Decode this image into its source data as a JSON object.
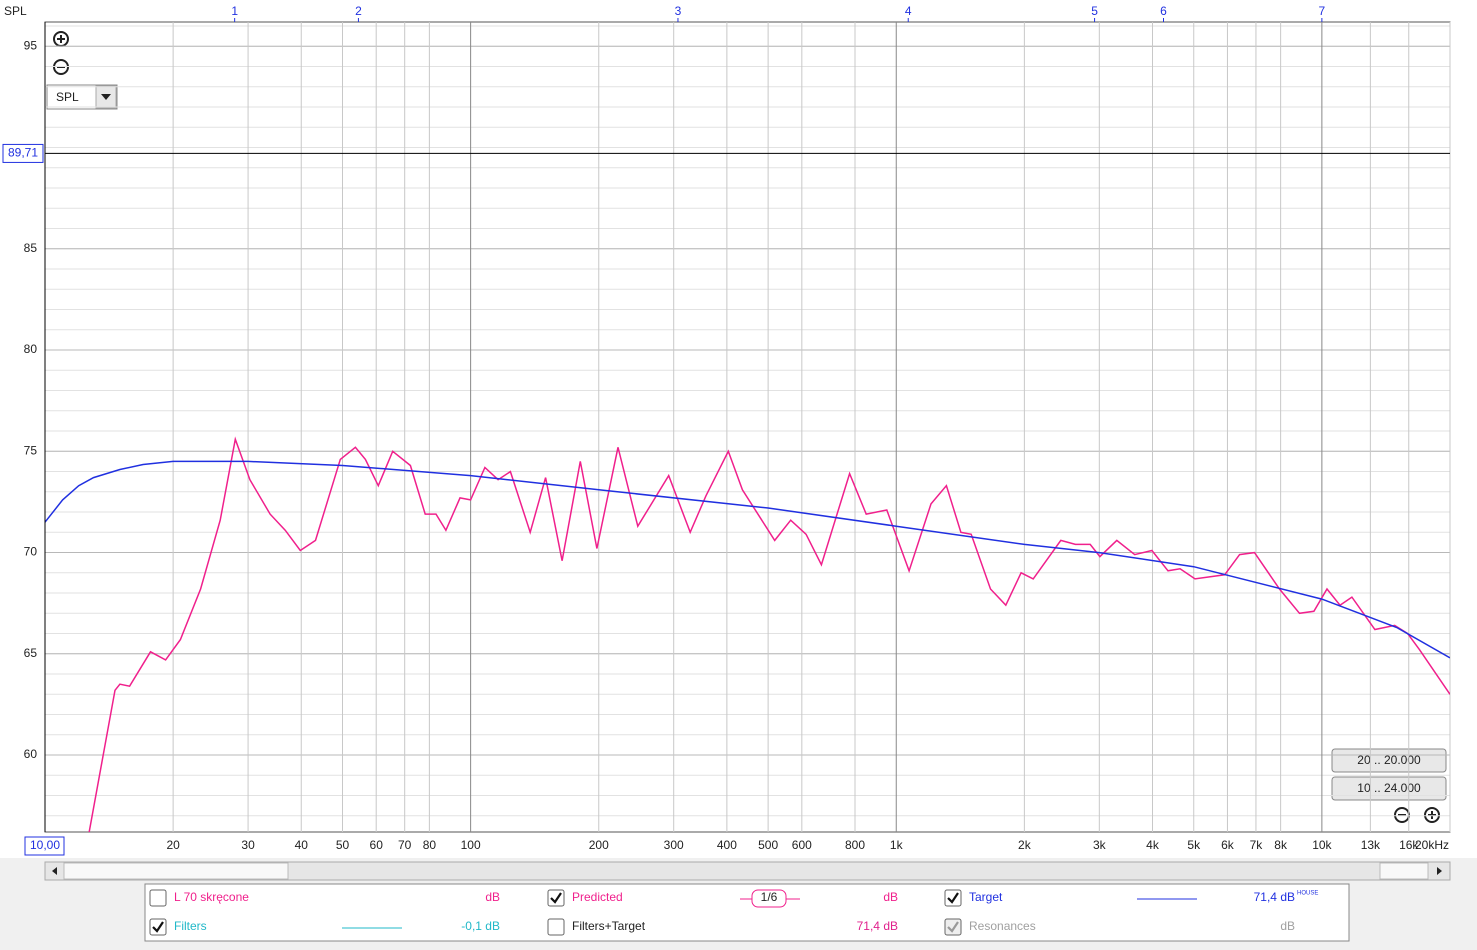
{
  "chart_data": {
    "type": "line",
    "y_label": "SPL",
    "log_x": true,
    "grid": true,
    "xlim": [
      10,
      20000
    ],
    "ylim": [
      56.2,
      96.2
    ],
    "yticks": [
      60,
      65,
      70,
      75,
      80,
      85,
      95
    ],
    "xticks": [
      20,
      30,
      40,
      50,
      60,
      70,
      80,
      100,
      200,
      300,
      400,
      500,
      600,
      800,
      {
        "value": 1000,
        "label": "1k"
      },
      {
        "value": 2000,
        "label": "2k"
      },
      {
        "value": 3000,
        "label": "3k"
      },
      {
        "value": 4000,
        "label": "4k"
      },
      {
        "value": 5000,
        "label": "5k"
      },
      {
        "value": 6000,
        "label": "6k"
      },
      {
        "value": 7000,
        "label": "7k"
      },
      {
        "value": 8000,
        "label": "8k"
      },
      {
        "value": 10000,
        "label": "10k"
      },
      {
        "value": 13000,
        "label": "13k"
      },
      {
        "value": 16000,
        "label": "16k"
      },
      {
        "value": 20000,
        "label": "20kHz"
      }
    ],
    "x_cursor": {
      "value": 10,
      "label": "10,00"
    },
    "y_cursor": {
      "value": 89.71,
      "label": "89,71"
    },
    "top_markers": [
      {
        "value": 27.9,
        "label": "1"
      },
      {
        "value": 54.5,
        "label": "2"
      },
      {
        "value": 307,
        "label": "3"
      },
      {
        "value": 1067,
        "label": "4"
      },
      {
        "value": 2924,
        "label": "5"
      },
      {
        "value": 4245,
        "label": "6"
      },
      {
        "value": 10000,
        "label": "7"
      }
    ],
    "series": [
      {
        "name": "Predicted",
        "color": "#f0208c",
        "checked": true,
        "readout": "dB",
        "smoothing": "1/6",
        "x": [
          12.6,
          14.6,
          15,
          15.8,
          17.7,
          19.2,
          20.8,
          23.2,
          25.8,
          28,
          30.3,
          33.8,
          36.7,
          39.8,
          43.2,
          49.4,
          53.6,
          56.6,
          60.7,
          65.6,
          72.2,
          78.2,
          82.9,
          87.5,
          94.4,
          100,
          108,
          116,
          124,
          138,
          150,
          164,
          181,
          198,
          222,
          247,
          292,
          328,
          357,
          403,
          435,
          518,
          565,
          614,
          667,
          777,
          850,
          950,
          1072,
          1207,
          1312,
          1419,
          1500,
          1665,
          1809,
          1965,
          2098,
          2436,
          2636,
          2855,
          3010,
          3297,
          3633,
          3988,
          4349,
          4643,
          5034,
          5910,
          6407,
          6945,
          7953,
          8862,
          9580,
          10280,
          11033,
          11762,
          13320,
          14830,
          15913,
          16970,
          20000
        ],
        "values": [
          55.8,
          63.2,
          63.5,
          63.4,
          65.1,
          64.7,
          65.7,
          68.2,
          71.6,
          75.6,
          73.6,
          71.9,
          71.1,
          70.1,
          70.6,
          74.6,
          75.2,
          74.6,
          73.3,
          75,
          74.3,
          71.9,
          71.9,
          71.1,
          72.7,
          72.6,
          74.2,
          73.6,
          74,
          71,
          73.7,
          69.6,
          74.5,
          70.2,
          75.2,
          71.3,
          73.8,
          71,
          72.8,
          75,
          73.1,
          70.6,
          71.6,
          70.9,
          69.4,
          73.9,
          71.9,
          72.1,
          69.1,
          72.4,
          73.3,
          71,
          70.9,
          68.2,
          67.4,
          69,
          68.7,
          70.6,
          70.4,
          70.4,
          69.8,
          70.6,
          69.9,
          70.1,
          69.1,
          69.2,
          68.7,
          68.9,
          69.9,
          70,
          68.2,
          67,
          67.1,
          68.2,
          67.4,
          67.8,
          66.2,
          66.4,
          66,
          65.2,
          63
        ]
      },
      {
        "name": "Target",
        "color": "#2030e0",
        "checked": true,
        "readout": "71,4 dB",
        "readout_note": "HOUSE",
        "x": [
          10,
          11,
          12,
          13,
          15,
          17,
          20,
          30,
          50,
          100,
          200,
          500,
          1000,
          2000,
          3000,
          5000,
          10000,
          15000,
          20000
        ],
        "values": [
          71.5,
          72.6,
          73.3,
          73.7,
          74.1,
          74.35,
          74.5,
          74.5,
          74.3,
          73.8,
          73.1,
          72.2,
          71.3,
          70.4,
          70,
          69.3,
          67.7,
          66.3,
          64.8
        ]
      }
    ],
    "other_traces": [
      {
        "name": "L 70 skręcone",
        "checked": false,
        "readout": "dB",
        "color": "#f0208c"
      },
      {
        "name": "Filters",
        "checked": true,
        "readout": "-0,1 dB",
        "color": "#20b8c8"
      },
      {
        "name": "Filters+Target",
        "checked": false,
        "readout": "71,4 dB",
        "color": "#e0208c"
      },
      {
        "name": "Resonances",
        "checked": true,
        "disabled": true,
        "readout": "dB",
        "color": "#a0a0a0"
      }
    ]
  },
  "controls": {
    "dropdown": "SPL",
    "range_buttons": [
      "20 .. 20.000",
      "10 .. 24.000"
    ]
  }
}
